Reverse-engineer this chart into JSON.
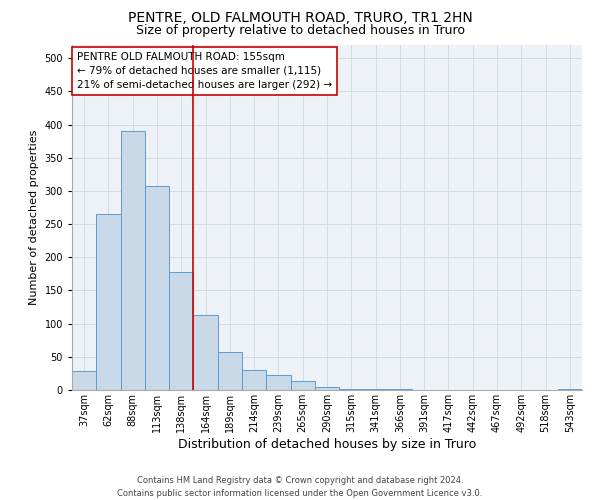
{
  "title1": "PENTRE, OLD FALMOUTH ROAD, TRURO, TR1 2HN",
  "title2": "Size of property relative to detached houses in Truro",
  "xlabel": "Distribution of detached houses by size in Truro",
  "ylabel": "Number of detached properties",
  "footnote": "Contains HM Land Registry data © Crown copyright and database right 2024.\nContains public sector information licensed under the Open Government Licence v3.0.",
  "categories": [
    "37sqm",
    "62sqm",
    "88sqm",
    "113sqm",
    "138sqm",
    "164sqm",
    "189sqm",
    "214sqm",
    "239sqm",
    "265sqm",
    "290sqm",
    "315sqm",
    "341sqm",
    "366sqm",
    "391sqm",
    "417sqm",
    "442sqm",
    "467sqm",
    "492sqm",
    "518sqm",
    "543sqm"
  ],
  "values": [
    28,
    265,
    390,
    308,
    178,
    113,
    58,
    30,
    23,
    13,
    5,
    2,
    1,
    1,
    0,
    0,
    0,
    0,
    0,
    0,
    2
  ],
  "bar_color": "#c9d9e8",
  "bar_edge_color": "#5b9bd5",
  "marker_bin_index": 4.5,
  "marker_line_color": "#cc0000",
  "annotation_text": "PENTRE OLD FALMOUTH ROAD: 155sqm\n← 79% of detached houses are smaller (1,115)\n21% of semi-detached houses are larger (292) →",
  "annotation_box_color": "#ffffff",
  "annotation_box_edge": "#cc0000",
  "ylim": [
    0,
    520
  ],
  "yticks": [
    0,
    50,
    100,
    150,
    200,
    250,
    300,
    350,
    400,
    450,
    500
  ],
  "grid_color": "#d0d8e0",
  "background_color": "#eef2f7",
  "title1_fontsize": 10,
  "title2_fontsize": 9,
  "xlabel_fontsize": 9,
  "ylabel_fontsize": 8,
  "tick_fontsize": 7,
  "annotation_fontsize": 7.5,
  "footnote_fontsize": 6
}
